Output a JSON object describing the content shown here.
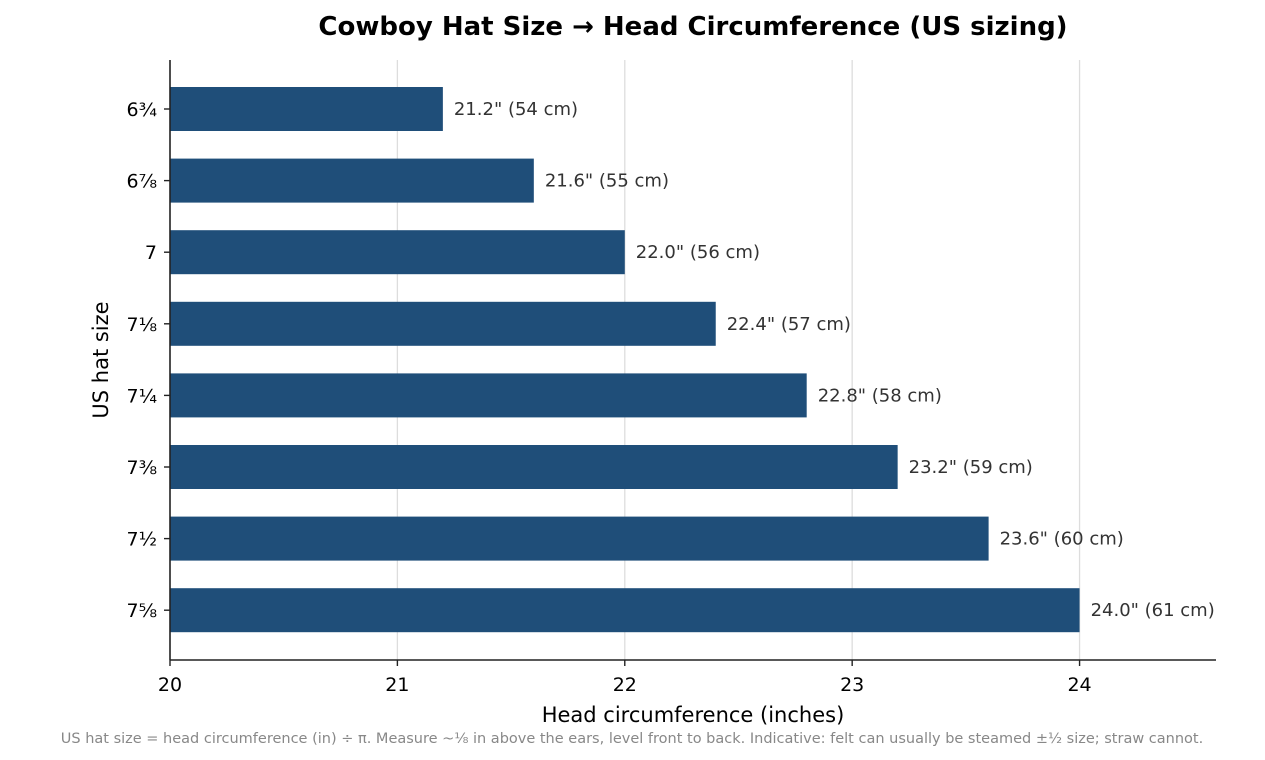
{
  "chart_data": {
    "type": "bar",
    "orientation": "horizontal",
    "title": "Cowboy Hat Size → Head Circumference (US sizing)",
    "xlabel": "Head circumference (inches)",
    "ylabel": "US hat size",
    "categories": [
      "6¾",
      "6⅞",
      "7",
      "7⅛",
      "7¼",
      "7⅜",
      "7½",
      "7⅝"
    ],
    "values": [
      21.2,
      21.6,
      22.0,
      22.4,
      22.8,
      23.2,
      23.6,
      24.0
    ],
    "data_labels": [
      "21.2\"  (54 cm)",
      "21.6\"  (55 cm)",
      "22.0\"  (56 cm)",
      "22.4\"  (57 cm)",
      "22.8\"  (58 cm)",
      "23.2\"  (59 cm)",
      "23.6\"  (60 cm)",
      "24.0\"  (61 cm)"
    ],
    "xlim": [
      20,
      24.6
    ],
    "xticks": [
      20,
      21,
      22,
      23,
      24
    ],
    "grid": "vertical",
    "bar_color": "#1f4e79",
    "footnote": "US hat size = head circumference (in) ÷ π. Measure ~⅛ in above the ears, level front to back. Indicative: felt can usually be steamed ±½ size; straw cannot."
  }
}
